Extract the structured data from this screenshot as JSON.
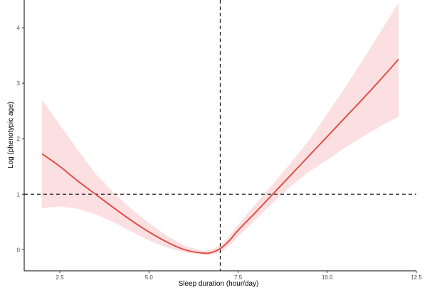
{
  "chart_data": {
    "type": "line",
    "title": "",
    "xlabel": "Sleep duration (hour/day)",
    "ylabel": "Log (phenotypic age)",
    "xlim": [
      1.5,
      12.5
    ],
    "ylim": [
      -0.38,
      4.5
    ],
    "x_ticks": [
      {
        "value": 2.5,
        "label": "2.5"
      },
      {
        "value": 5.0,
        "label": "5.0"
      },
      {
        "value": 7.5,
        "label": "7.5"
      },
      {
        "value": 10.0,
        "label": "10.0"
      },
      {
        "value": 12.5,
        "label": "12.5"
      }
    ],
    "y_ticks": [
      {
        "value": 0,
        "label": "0"
      },
      {
        "value": 1,
        "label": "1"
      },
      {
        "value": 2,
        "label": "2"
      },
      {
        "value": 3,
        "label": "3"
      },
      {
        "value": 4,
        "label": "4"
      }
    ],
    "grid": false,
    "reference_lines": {
      "horizontal_y": 1,
      "vertical_x": 7.0
    },
    "series": [
      {
        "line_color": "#e0433a",
        "band_color": "#fcdfe0",
        "x": [
          2.0,
          2.5,
          3.0,
          3.5,
          4.0,
          4.5,
          5.0,
          5.5,
          6.0,
          6.5,
          6.75,
          7.0,
          7.25,
          7.5,
          8.0,
          8.5,
          9.0,
          9.5,
          10.0,
          10.5,
          11.0,
          11.5,
          12.0
        ],
        "y": [
          1.73,
          1.5,
          1.24,
          1.0,
          0.76,
          0.53,
          0.32,
          0.14,
          0.0,
          -0.06,
          -0.05,
          0.02,
          0.16,
          0.35,
          0.68,
          1.02,
          1.36,
          1.7,
          2.04,
          2.38,
          2.72,
          3.07,
          3.43
        ],
        "lower": [
          0.75,
          0.78,
          0.74,
          0.64,
          0.5,
          0.33,
          0.17,
          0.04,
          -0.05,
          -0.09,
          -0.09,
          -0.05,
          0.07,
          0.24,
          0.55,
          0.86,
          1.16,
          1.41,
          1.62,
          1.84,
          2.04,
          2.23,
          2.4
        ],
        "upper": [
          2.7,
          2.25,
          1.8,
          1.37,
          1.03,
          0.74,
          0.48,
          0.25,
          0.07,
          -0.02,
          0.0,
          0.08,
          0.24,
          0.45,
          0.83,
          1.2,
          1.58,
          1.98,
          2.45,
          2.92,
          3.42,
          3.93,
          4.45
        ]
      }
    ]
  }
}
